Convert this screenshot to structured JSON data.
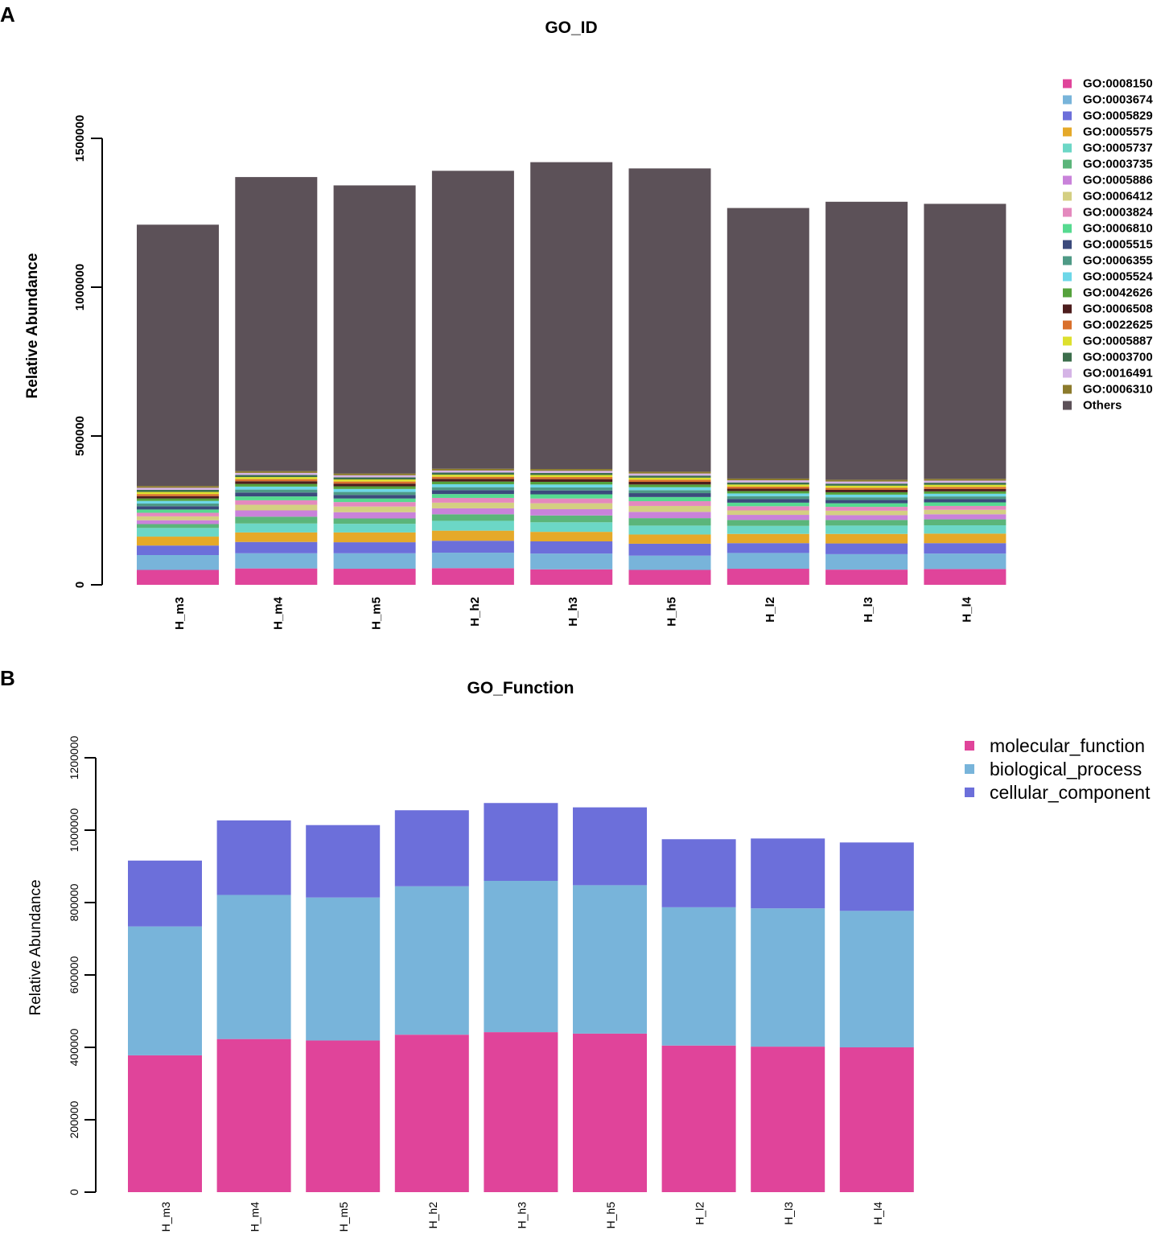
{
  "chart_data": [
    {
      "panel": "A",
      "type": "bar",
      "stacked": true,
      "title": "GO_ID",
      "xlabel": "",
      "ylabel": "Relative Abundance",
      "ylim": [
        0,
        1500000
      ],
      "yticks": [
        "0",
        "500000",
        "1000000",
        "1500000"
      ],
      "ytick_values": [
        0,
        500000,
        1000000,
        1500000
      ],
      "categories": [
        "H_m3",
        "H_m4",
        "H_m5",
        "H_h2",
        "H_h3",
        "H_h5",
        "H_l2",
        "H_l3",
        "H_l4"
      ],
      "legend_position": "right",
      "series": [
        {
          "name": "GO:0008150",
          "color": "#E0449A",
          "values": [
            50000,
            55000,
            54000,
            56000,
            52000,
            50000,
            54000,
            51000,
            53000
          ]
        },
        {
          "name": "GO:0003674",
          "color": "#78B4DA",
          "values": [
            50000,
            51000,
            52000,
            52000,
            53000,
            48000,
            53000,
            52000,
            52000
          ]
        },
        {
          "name": "GO:0005829",
          "color": "#6C6FDA",
          "values": [
            32000,
            38000,
            37000,
            40000,
            41000,
            40000,
            33000,
            36000,
            35000
          ]
        },
        {
          "name": "GO:0005575",
          "color": "#E5A929",
          "values": [
            30000,
            32000,
            33000,
            34000,
            32000,
            31000,
            31000,
            32000,
            32000
          ]
        },
        {
          "name": "GO:0005737",
          "color": "#6CD7C6",
          "values": [
            29000,
            30000,
            29000,
            33000,
            32000,
            30000,
            27000,
            28000,
            28000
          ]
        },
        {
          "name": "GO:0003735",
          "color": "#5BB57A",
          "values": [
            13000,
            23000,
            18000,
            22000,
            23000,
            25000,
            20000,
            19000,
            20000
          ]
        },
        {
          "name": "GO:0005886",
          "color": "#C982DA",
          "values": [
            13000,
            21000,
            21000,
            20000,
            21000,
            21000,
            17000,
            16000,
            17000
          ]
        },
        {
          "name": "GO:0006412",
          "color": "#D4CF82",
          "values": [
            13000,
            19000,
            19000,
            19000,
            20000,
            20000,
            15000,
            15000,
            15000
          ]
        },
        {
          "name": "GO:0003824",
          "color": "#E489BE",
          "values": [
            12000,
            15000,
            15000,
            16000,
            16000,
            16000,
            14000,
            13000,
            13000
          ]
        },
        {
          "name": "GO:0006810",
          "color": "#56DA90",
          "values": [
            11000,
            13000,
            12000,
            13000,
            14000,
            14000,
            12000,
            12000,
            12000
          ]
        },
        {
          "name": "GO:0005515",
          "color": "#3B4A7C",
          "values": [
            11000,
            13000,
            12000,
            13000,
            13000,
            13000,
            12000,
            11000,
            11000
          ]
        },
        {
          "name": "GO:0006355",
          "color": "#4E9A86",
          "values": [
            9000,
            10000,
            10000,
            10000,
            10000,
            10000,
            10000,
            9000,
            9000
          ]
        },
        {
          "name": "GO:0005524",
          "color": "#6DD7E8",
          "values": [
            9000,
            10000,
            10000,
            10000,
            10000,
            10000,
            9000,
            9000,
            9000
          ]
        },
        {
          "name": "GO:0042626",
          "color": "#55A23C",
          "values": [
            8000,
            9000,
            9000,
            9000,
            9000,
            9000,
            8000,
            8000,
            8000
          ]
        },
        {
          "name": "GO:0006508",
          "color": "#4D1D1D",
          "values": [
            8000,
            9000,
            9000,
            9000,
            9000,
            9000,
            8000,
            8000,
            8000
          ]
        },
        {
          "name": "GO:0022625",
          "color": "#D9702C",
          "values": [
            7000,
            7000,
            7000,
            7000,
            7000,
            7000,
            7000,
            7000,
            7000
          ]
        },
        {
          "name": "GO:0005887",
          "color": "#DDE02E",
          "values": [
            7000,
            7000,
            7000,
            7000,
            7000,
            7000,
            7000,
            7000,
            7000
          ]
        },
        {
          "name": "GO:0003700",
          "color": "#3C6E4C",
          "values": [
            7000,
            7000,
            7000,
            7000,
            7000,
            7000,
            7000,
            7000,
            7000
          ]
        },
        {
          "name": "GO:0016491",
          "color": "#D5B4E6",
          "values": [
            7000,
            7000,
            7000,
            7000,
            7000,
            7000,
            7000,
            7000,
            7000
          ]
        },
        {
          "name": "GO:0006310",
          "color": "#8C7B2C",
          "values": [
            6000,
            6000,
            6000,
            6000,
            6000,
            6000,
            6000,
            6000,
            6000
          ]
        },
        {
          "name": "Others",
          "color": "#5C5158",
          "values": [
            878000,
            988000,
            968000,
            1001000,
            1031000,
            1019000,
            909000,
            934000,
            924000
          ]
        }
      ]
    },
    {
      "panel": "B",
      "type": "bar",
      "stacked": true,
      "title": "GO_Function",
      "xlabel": "",
      "ylabel": "Relative Abundance",
      "ylim": [
        0,
        1200000
      ],
      "yticks": [
        "0",
        "200000",
        "400000",
        "600000",
        "800000",
        "1000000",
        "1200000"
      ],
      "ytick_values": [
        0,
        200000,
        400000,
        600000,
        800000,
        1000000,
        1200000
      ],
      "categories": [
        "H_m3",
        "H_m4",
        "H_m5",
        "H_h2",
        "H_h3",
        "H_h5",
        "H_l2",
        "H_l3",
        "H_l4"
      ],
      "legend_position": "top-right",
      "series": [
        {
          "name": "molecular_function",
          "color": "#E0449A",
          "values": [
            378000,
            423000,
            419000,
            435000,
            442000,
            438000,
            405000,
            402000,
            400000
          ]
        },
        {
          "name": "biological_process",
          "color": "#78B4DA",
          "values": [
            356000,
            398000,
            395000,
            410000,
            418000,
            410000,
            382000,
            382000,
            377000
          ]
        },
        {
          "name": "cellular_component",
          "color": "#6C6FDA",
          "values": [
            182000,
            206000,
            200000,
            210000,
            215000,
            215000,
            188000,
            193000,
            189000
          ]
        }
      ]
    }
  ],
  "panels": {
    "a": "A",
    "b": "B"
  }
}
